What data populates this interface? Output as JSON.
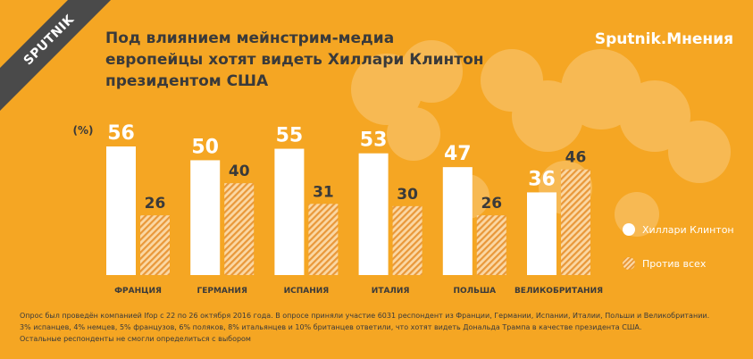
{
  "logo": "SPUTNIK",
  "brand": "Sputnik.Мнения",
  "title_lines": [
    "Под влиянием мейнстрим-медиа",
    "европейцы хотят видеть Хиллари Клинтон",
    "президентом США"
  ],
  "colors": {
    "background": "#f5a623",
    "series_a": "#ffffff",
    "series_b_light": "#fbd8a4",
    "series_b_dark": "#e9983a",
    "value_a": "#ffffff",
    "value_b": "#3a3a3a"
  },
  "legend": {
    "item_a": "Хиллари Клинтон",
    "item_b": "Против всех"
  },
  "footnote": [
    "Опрос был проведён компанией Ifop с 22 по 26 октября 2016 года. В опросе приняли участие 6031  респондент из Франции, Германии, Испании, Италии, Польши и Великобритании.",
    "3% испанцев, 4% немцев, 5% французов, 6% поляков, 8% итальянцев и 10% британцев ответили, что хотят видеть Дональда Трампа в качестве президента США.",
    "Остальные респонденты не смогли определиться с выбором"
  ],
  "chart_data": {
    "type": "bar",
    "unit_label": "(%)",
    "categories": [
      "ФРАНЦИЯ",
      "ГЕРМАНИЯ",
      "ИСПАНИЯ",
      "ИТАЛИЯ",
      "ПОЛЬША",
      "ВЕЛИКОБРИТАНИЯ"
    ],
    "series": [
      {
        "name": "Хиллари Клинтон",
        "values": [
          56,
          50,
          55,
          53,
          47,
          36
        ]
      },
      {
        "name": "Против всех",
        "values": [
          26,
          40,
          31,
          30,
          26,
          46
        ]
      }
    ],
    "ylim": [
      0,
      56
    ],
    "legend": "right",
    "grid": false
  }
}
